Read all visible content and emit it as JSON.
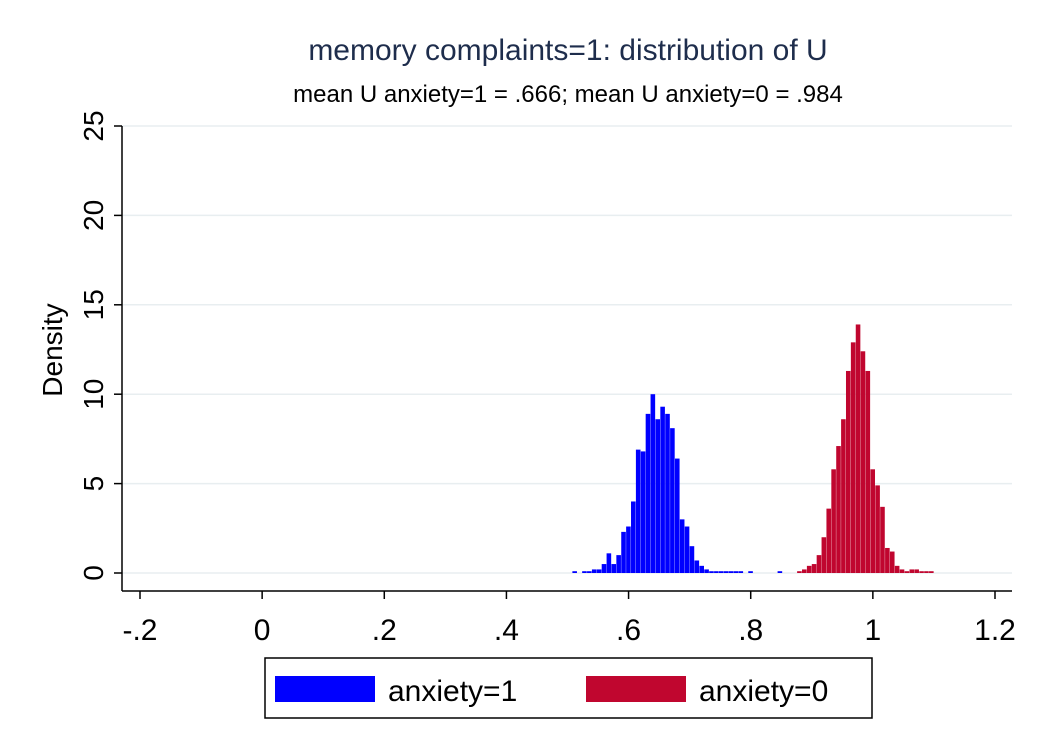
{
  "chart_data": {
    "type": "bar",
    "title": "memory complaints=1: distribution of U",
    "subtitle": "mean U anxiety=1 = .666; mean U anxiety=0 = .984",
    "xlabel": "",
    "ylabel": "Density",
    "xlim": [
      -0.22,
      1.22
    ],
    "ylim": [
      0,
      25.5
    ],
    "x_ticks": [
      -0.2,
      0,
      0.2,
      0.4,
      0.6,
      0.8,
      1,
      1.2
    ],
    "x_tick_labels": [
      "-.2",
      "0",
      ".2",
      ".4",
      ".6",
      ".8",
      "1",
      "1.2"
    ],
    "y_ticks": [
      0,
      5,
      10,
      15,
      20,
      25
    ],
    "y_tick_labels": [
      "0",
      "5",
      "10",
      "15",
      "20",
      "25"
    ],
    "grid": true,
    "legend_position": "bottom",
    "bin_width": 0.008,
    "series": [
      {
        "name": "anxiety=1",
        "color": "#0000ff",
        "x": [
          0.512,
          0.528,
          0.536,
          0.544,
          0.552,
          0.56,
          0.568,
          0.576,
          0.584,
          0.592,
          0.6,
          0.608,
          0.616,
          0.624,
          0.632,
          0.64,
          0.648,
          0.656,
          0.664,
          0.672,
          0.68,
          0.688,
          0.696,
          0.704,
          0.712,
          0.72,
          0.728,
          0.736,
          0.744,
          0.752,
          0.76,
          0.768,
          0.776,
          0.784,
          0.8,
          0.848
        ],
        "values": [
          0.1,
          0.1,
          0.1,
          0.2,
          0.2,
          0.5,
          1.1,
          0.5,
          1.0,
          2.3,
          2.6,
          4.0,
          6.9,
          6.8,
          8.9,
          10.0,
          8.6,
          9.3,
          8.9,
          8.1,
          6.4,
          3.0,
          2.6,
          1.5,
          0.7,
          0.4,
          0.2,
          0.1,
          0.1,
          0.1,
          0.1,
          0.1,
          0.1,
          0.1,
          0.1,
          0.1
        ]
      },
      {
        "name": "anxiety=0",
        "color": "#c0062f",
        "x": [
          0.88,
          0.888,
          0.896,
          0.904,
          0.912,
          0.92,
          0.928,
          0.936,
          0.944,
          0.952,
          0.96,
          0.968,
          0.976,
          0.984,
          0.992,
          1.0,
          1.008,
          1.016,
          1.024,
          1.032,
          1.04,
          1.048,
          1.056,
          1.064,
          1.072,
          1.08,
          1.088,
          1.096
        ],
        "values": [
          0.1,
          0.2,
          0.4,
          0.5,
          1.0,
          2.0,
          3.6,
          5.8,
          7.1,
          8.6,
          11.3,
          12.9,
          13.9,
          12.4,
          11.3,
          5.8,
          4.9,
          3.7,
          1.4,
          1.2,
          0.4,
          0.2,
          0.1,
          0.2,
          0.2,
          0.1,
          0.1,
          0.1
        ]
      }
    ]
  }
}
